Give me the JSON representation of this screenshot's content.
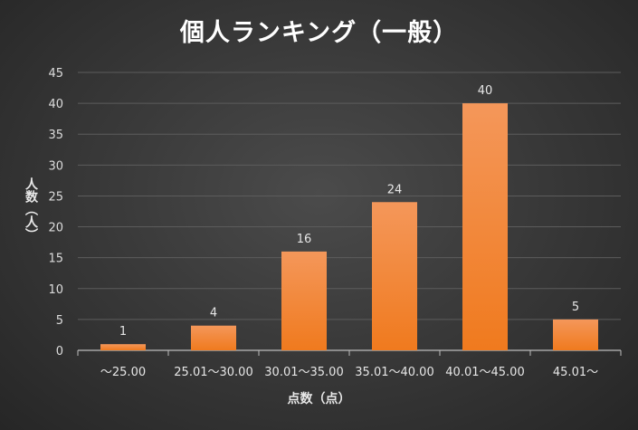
{
  "chart_data": {
    "type": "bar",
    "title": "個人ランキング（一般）",
    "xlabel": "点数（点）",
    "ylabel": "人数（人）",
    "categories": [
      "～25.00",
      "25.01～30.00",
      "30.01～35.00",
      "35.01～40.00",
      "40.01～45.00",
      "45.01～"
    ],
    "values": [
      1,
      4,
      16,
      24,
      40,
      5
    ],
    "ylim": [
      0,
      45
    ],
    "yticks": [
      0,
      5,
      10,
      15,
      20,
      25,
      30,
      35,
      40,
      45
    ],
    "grid": true,
    "data_labels": true,
    "bar_color": "#f07a1e",
    "bar_color_light": "#f4975a"
  }
}
